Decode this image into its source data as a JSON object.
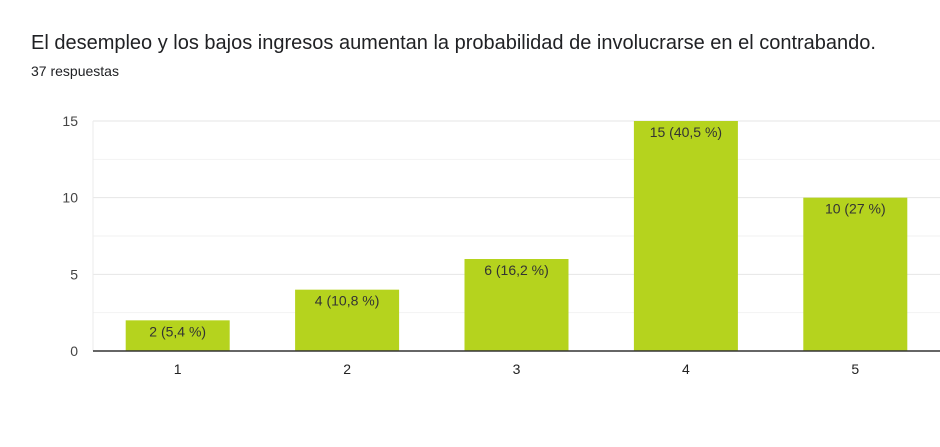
{
  "header": {
    "title": "El desempleo y los bajos ingresos aumentan la probabilidad de involucrarse en el contrabando.",
    "responses": "37 respuestas"
  },
  "chart_data": {
    "type": "bar",
    "categories": [
      "1",
      "2",
      "3",
      "4",
      "5"
    ],
    "values": [
      2,
      4,
      6,
      15,
      10
    ],
    "data_labels": [
      "2 (5,4 %)",
      "4 (10,8 %)",
      "6 (16,2 %)",
      "15 (40,5 %)",
      "10 (27 %)"
    ],
    "ylim": [
      0,
      15
    ],
    "yticks": [
      "0",
      "5",
      "10",
      "15"
    ],
    "grid": true,
    "bar_color": "#b5d31e"
  }
}
